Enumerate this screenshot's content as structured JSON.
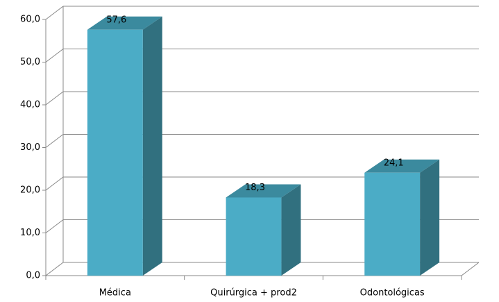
{
  "chart_data": {
    "type": "bar3d",
    "categories": [
      "Médica",
      "Quirúrgica + prod2",
      "Odontológicas"
    ],
    "values": [
      57.6,
      18.3,
      24.1
    ],
    "value_labels": [
      "57,6",
      "18,3",
      "24,1"
    ],
    "color": "#4bacc6",
    "ylim": [
      0,
      60
    ],
    "yticks": [
      {
        "value": 0,
        "label": "0,0"
      },
      {
        "value": 10,
        "label": "10,0"
      },
      {
        "value": 20,
        "label": "20,0"
      },
      {
        "value": 30,
        "label": "30,0"
      },
      {
        "value": 40,
        "label": "40,0"
      },
      {
        "value": 50,
        "label": "50,0"
      },
      {
        "value": 60,
        "label": "60,0"
      }
    ],
    "grid": true
  }
}
